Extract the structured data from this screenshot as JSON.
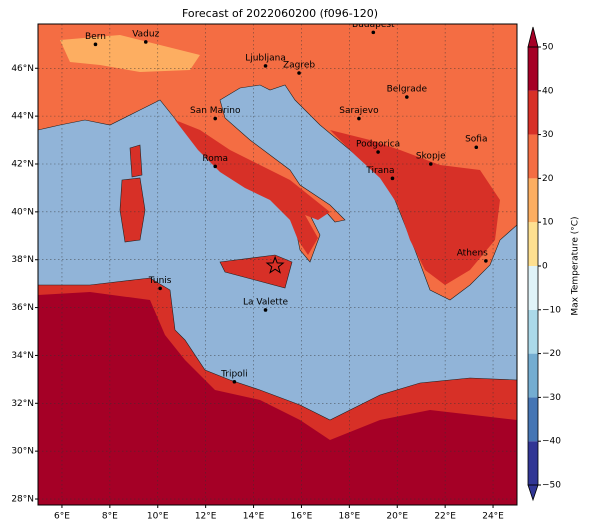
{
  "title": "Forecast of 2022060200 (f096-120)",
  "map": {
    "lonlim": [
      5,
      25
    ],
    "latlim": [
      27.75,
      47.85
    ],
    "lon_ticks": [
      {
        "value": 6,
        "label": "6°E"
      },
      {
        "value": 8,
        "label": "8°E"
      },
      {
        "value": 10,
        "label": "10°E"
      },
      {
        "value": 12,
        "label": "12°E"
      },
      {
        "value": 14,
        "label": "14°E"
      },
      {
        "value": 16,
        "label": "16°E"
      },
      {
        "value": 18,
        "label": "18°E"
      },
      {
        "value": 20,
        "label": "20°E"
      },
      {
        "value": 22,
        "label": "22°E"
      },
      {
        "value": 24,
        "label": "24°E"
      }
    ],
    "lat_ticks": [
      {
        "value": 28,
        "label": "28°N"
      },
      {
        "value": 30,
        "label": "30°N"
      },
      {
        "value": 32,
        "label": "32°N"
      },
      {
        "value": 34,
        "label": "34°N"
      },
      {
        "value": 36,
        "label": "36°N"
      },
      {
        "value": 38,
        "label": "38°N"
      },
      {
        "value": 40,
        "label": "40°N"
      },
      {
        "value": 42,
        "label": "42°N"
      },
      {
        "value": 44,
        "label": "44°N"
      },
      {
        "value": 46,
        "label": "46°N"
      }
    ],
    "cities": [
      {
        "name": "Bern",
        "lon": 7.4,
        "lat": 47.0
      },
      {
        "name": "Vaduz",
        "lon": 9.5,
        "lat": 47.1
      },
      {
        "name": "Budapest",
        "lon": 19.0,
        "lat": 47.5
      },
      {
        "name": "Ljubljana",
        "lon": 14.5,
        "lat": 46.1
      },
      {
        "name": "Zagreb",
        "lon": 15.9,
        "lat": 45.8
      },
      {
        "name": "Belgrade",
        "lon": 20.4,
        "lat": 44.8
      },
      {
        "name": "San Marino",
        "lon": 12.4,
        "lat": 43.9
      },
      {
        "name": "Sarajevo",
        "lon": 18.4,
        "lat": 43.9
      },
      {
        "name": "Sofia",
        "lon": 23.3,
        "lat": 42.7
      },
      {
        "name": "Podgorica",
        "lon": 19.2,
        "lat": 42.5
      },
      {
        "name": "Skopje",
        "lon": 21.4,
        "lat": 42.0
      },
      {
        "name": "Roma",
        "lon": 12.4,
        "lat": 41.9
      },
      {
        "name": "Tirana",
        "lon": 19.8,
        "lat": 41.4
      },
      {
        "name": "Athens",
        "lon": 23.7,
        "lat": 37.95
      },
      {
        "name": "Tunis",
        "lon": 10.1,
        "lat": 36.8
      },
      {
        "name": "La Valette",
        "lon": 14.5,
        "lat": 35.9
      },
      {
        "name": "Tripoli",
        "lon": 13.2,
        "lat": 32.9
      }
    ],
    "marker": {
      "lon": 14.9,
      "lat": 37.75
    }
  },
  "colorbar": {
    "label": "Max Temperature (°C)",
    "clim": [
      -50,
      50
    ],
    "ticks": [
      {
        "value": -50,
        "label": "−50"
      },
      {
        "value": -40,
        "label": "−40"
      },
      {
        "value": -30,
        "label": "−30"
      },
      {
        "value": -20,
        "label": "−20"
      },
      {
        "value": -10,
        "label": "−10"
      },
      0,
      10,
      20,
      30,
      40,
      50
    ],
    "colors": [
      "#313695",
      "#4575b4",
      "#74add1",
      "#abd9e9",
      "#e0f3f8",
      "#fee090",
      "#fdae61",
      "#f46d43",
      "#d73027",
      "#a50026"
    ]
  }
}
